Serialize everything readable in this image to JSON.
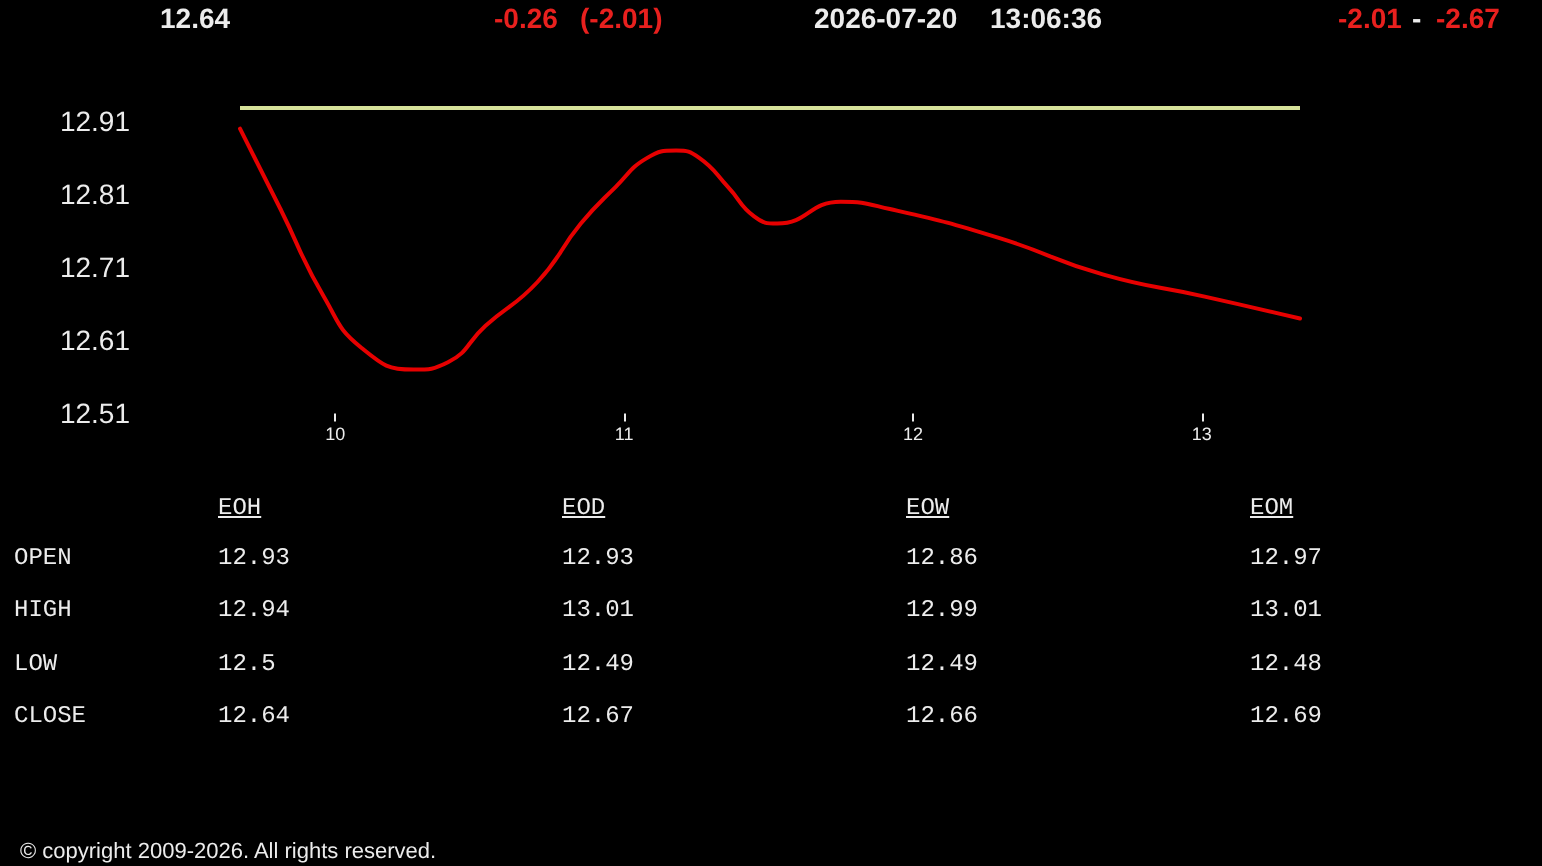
{
  "chart_data": [
    {
      "type": "line",
      "title": "12.64",
      "annotations": [
        "-0.26",
        "(-2.01)",
        "2026-07-20",
        "13:06:36",
        "-2.01",
        "-",
        "-2.67"
      ],
      "x": [
        9.67,
        9.81,
        9.96,
        10.09,
        10.27,
        10.39,
        10.52,
        10.7,
        10.85,
        10.97,
        11.08,
        11.18,
        11.26,
        11.36,
        11.45,
        11.53,
        11.75,
        11.92,
        12.3,
        12.66,
        13.01,
        13.34
      ],
      "series": [
        {
          "color": "#e60000",
          "values": [
            12.9,
            12.79,
            12.67,
            12.6,
            12.57,
            12.58,
            12.63,
            12.69,
            12.77,
            12.82,
            12.86,
            12.87,
            12.86,
            12.82,
            12.78,
            12.77,
            12.8,
            12.79,
            12.75,
            12.7,
            12.67,
            12.64
          ]
        }
      ],
      "xlim": [
        9.67,
        13.34
      ],
      "xticks": [
        10,
        11,
        12,
        13
      ],
      "ylim": [
        12.51,
        12.94
      ],
      "yticks": [
        12.51,
        12.61,
        12.71,
        12.81,
        12.91
      ],
      "ref_lines": [
        {
          "axis": "y",
          "value": 12.93,
          "color": "#d6e29a"
        }
      ],
      "marker": "none",
      "line_style": "solid"
    },
    {
      "type": "other",
      "categories": [
        "EOH",
        "EOD",
        "EOW",
        "EOM"
      ],
      "series": [
        {
          "name": "OPEN",
          "values": [
            12.93,
            12.93,
            12.86,
            12.97
          ]
        },
        {
          "name": "HIGH",
          "values": [
            12.94,
            13.01,
            12.99,
            13.01
          ]
        },
        {
          "name": "LOW",
          "values": [
            12.5,
            12.49,
            12.49,
            12.48
          ]
        },
        {
          "name": "CLOSE",
          "values": [
            12.64,
            12.67,
            12.66,
            12.69
          ]
        }
      ],
      "data_labels": true,
      "annotations": [
        "© copyright 2009-2026. All rights reserved."
      ]
    }
  ]
}
